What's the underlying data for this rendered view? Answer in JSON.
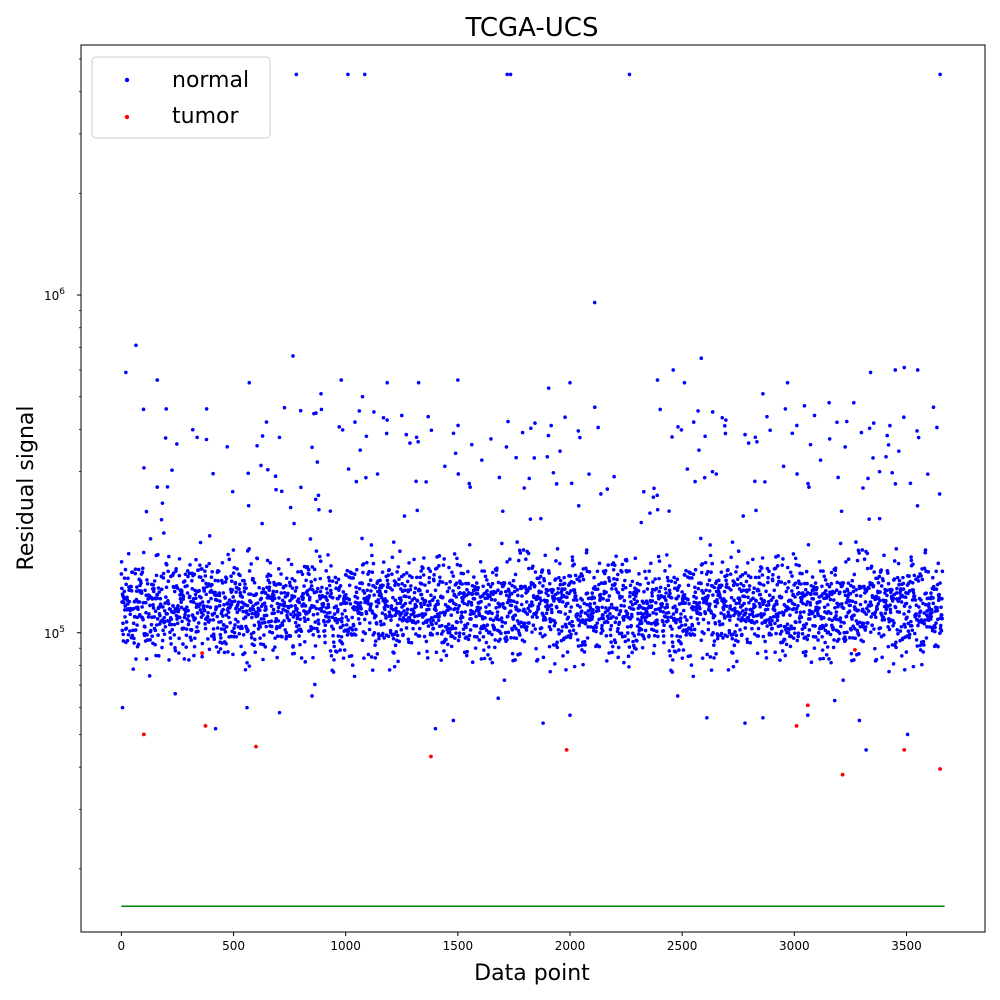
{
  "chart_data": {
    "type": "scatter",
    "title": "TCGA-UCS",
    "xlabel": "Data point",
    "ylabel": "Residual signal",
    "xlim": [
      -180,
      3850
    ],
    "ylim": [
      13000,
      5500000
    ],
    "yscale": "log",
    "x_ticks": [
      0,
      500,
      1000,
      1500,
      2000,
      2500,
      3000,
      3500
    ],
    "y_ticks": [
      {
        "value": 100000,
        "label": "10^5",
        "base": "10",
        "exp": "5"
      },
      {
        "value": 1000000,
        "label": "10^6",
        "base": "10",
        "exp": "6"
      }
    ],
    "legend": {
      "position": "upper-left",
      "entries": [
        {
          "name": "normal",
          "color": "#0000ff"
        },
        {
          "name": "tumor",
          "color": "#ff0000"
        }
      ]
    },
    "series": [
      {
        "name": "normal",
        "color": "#0000ff",
        "n_points": 3600,
        "x_range": [
          0,
          3660
        ],
        "typical_range": [
          68000,
          210000
        ],
        "outliers": [
          [
            780,
            4500000
          ],
          [
            1010,
            4500000
          ],
          [
            1085,
            4500000
          ],
          [
            1720,
            4500000
          ],
          [
            1735,
            4500000
          ],
          [
            2265,
            4500000
          ],
          [
            3650,
            4500000
          ],
          [
            2110,
            950000
          ],
          [
            65,
            710000
          ],
          [
            765,
            660000
          ],
          [
            2585,
            650000
          ],
          [
            3490,
            610000
          ],
          [
            3550,
            600000
          ],
          [
            2460,
            600000
          ],
          [
            20,
            590000
          ],
          [
            3340,
            590000
          ],
          [
            1500,
            560000
          ],
          [
            160,
            560000
          ],
          [
            2000,
            550000
          ],
          [
            2970,
            550000
          ],
          [
            2510,
            550000
          ],
          [
            1185,
            550000
          ],
          [
            1325,
            550000
          ],
          [
            570,
            550000
          ],
          [
            980,
            560000
          ],
          [
            3450,
            600000
          ],
          [
            2390,
            560000
          ],
          [
            1905,
            530000
          ],
          [
            890,
            510000
          ],
          [
            2860,
            510000
          ],
          [
            3155,
            480000
          ],
          [
            1075,
            500000
          ],
          [
            200,
            460000
          ],
          [
            3045,
            470000
          ],
          [
            3265,
            480000
          ],
          [
            2960,
            460000
          ],
          [
            3090,
            440000
          ],
          [
            3190,
            420000
          ],
          [
            2690,
            410000
          ],
          [
            380,
            460000
          ],
          [
            1250,
            440000
          ],
          [
            3420,
            360000
          ],
          [
            2455,
            380000
          ],
          [
            1760,
            330000
          ],
          [
            2635,
            300000
          ],
          [
            1490,
            340000
          ],
          [
            3380,
            300000
          ],
          [
            160,
            270000
          ]
        ],
        "low_points": [
          [
            5,
            60000
          ],
          [
            560,
            60000
          ],
          [
            705,
            58000
          ],
          [
            1480,
            55000
          ],
          [
            1880,
            54000
          ],
          [
            2610,
            56000
          ],
          [
            3060,
            57000
          ],
          [
            3180,
            63000
          ],
          [
            3290,
            55000
          ],
          [
            420,
            52000
          ],
          [
            1400,
            52000
          ],
          [
            2000,
            57000
          ],
          [
            2780,
            54000
          ],
          [
            3505,
            50000
          ],
          [
            3320,
            45000
          ],
          [
            2480,
            65000
          ],
          [
            850,
            65000
          ],
          [
            1680,
            64000
          ],
          [
            2860,
            56000
          ],
          [
            240,
            66000
          ]
        ]
      },
      {
        "name": "tumor",
        "color": "#ff0000",
        "points": [
          [
            100,
            50000
          ],
          [
            375,
            53000
          ],
          [
            360,
            87000
          ],
          [
            600,
            46000
          ],
          [
            1380,
            43000
          ],
          [
            1985,
            45000
          ],
          [
            3010,
            53000
          ],
          [
            3060,
            61000
          ],
          [
            3215,
            38000
          ],
          [
            3270,
            89000
          ],
          [
            3490,
            45000
          ],
          [
            3650,
            39500
          ]
        ]
      }
    ],
    "threshold_line": {
      "y": 15500,
      "x_range": [
        0,
        3670
      ],
      "color": "#008000"
    }
  }
}
